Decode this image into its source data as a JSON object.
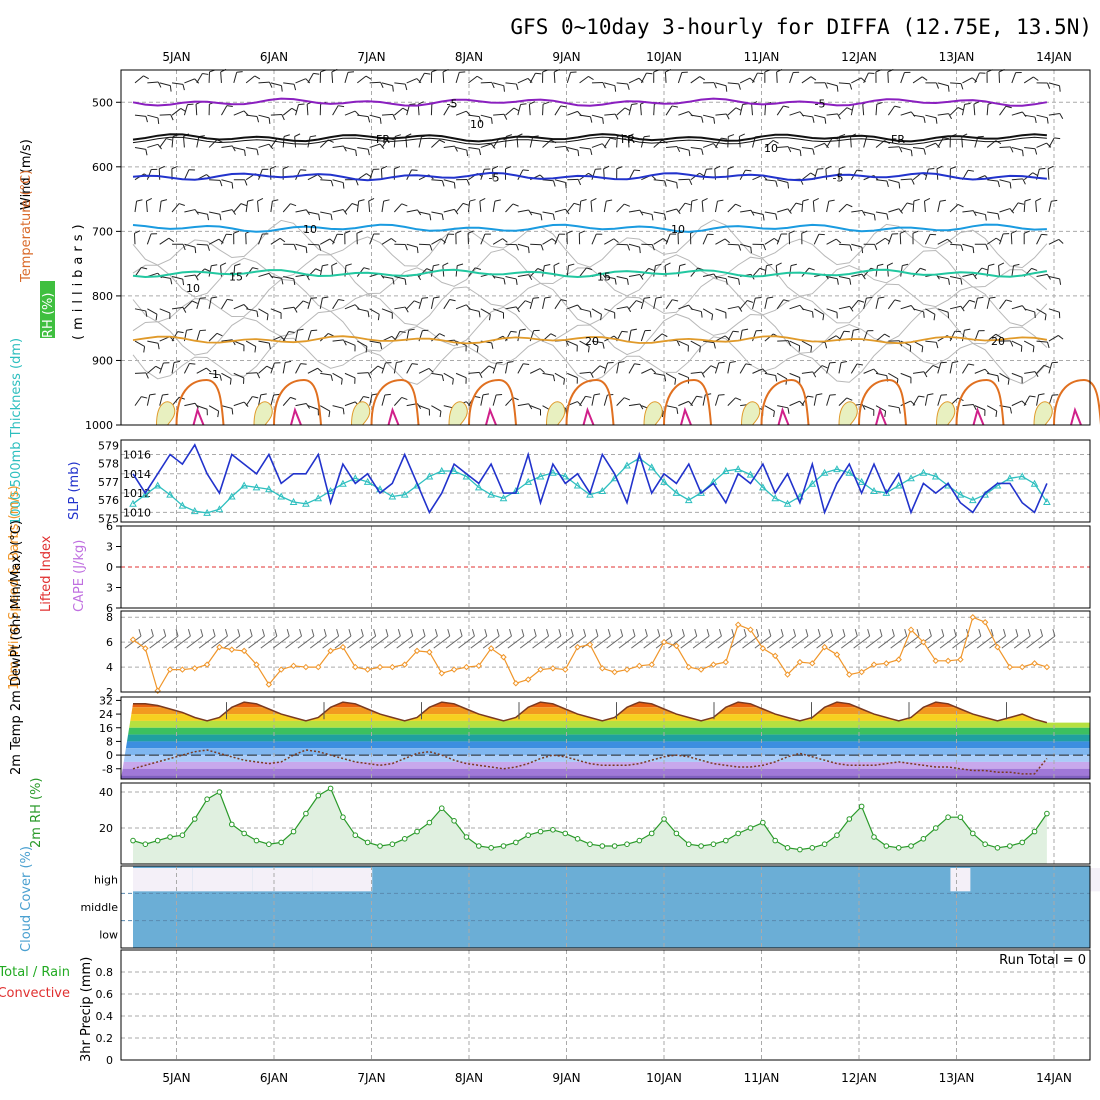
{
  "title": "GFS 0~10day 3-hourly for DIFFA (12.75E, 13.5N)",
  "dates": [
    "5JAN",
    "6JAN",
    "7JAN",
    "8JAN",
    "9JAN",
    "10JAN",
    "11JAN",
    "12JAN",
    "13JAN",
    "14JAN"
  ],
  "run_total_label": "Run Total = 0",
  "colors": {
    "purple": "#8a1fbf",
    "blue": "#2a4bd6",
    "lightblue": "#1a9be0",
    "teal": "#22c7a0",
    "orange": "#e09a2a",
    "darkorange": "#e07020",
    "magenta": "#d0208a",
    "cyan": "#2ebfbf",
    "slp": "#2233cc",
    "wind10": "#f0962a",
    "rh2m": "#2a9a2a",
    "cloud": "#6baed6",
    "red": "#e03030",
    "rhgreen": "#22aa22"
  },
  "chart_data": [
    {
      "panel": "upper-air",
      "type": "contour",
      "ylabel_parts": [
        "Wind (m/s)",
        "Temperature (°C)",
        "RH (%)"
      ],
      "ylabel_units": "(millibars)",
      "yticks": [
        500,
        600,
        700,
        800,
        900,
        1000
      ],
      "ylim": [
        450,
        1000
      ],
      "isotherm_labels": [
        {
          "value": "-5",
          "level": 500
        },
        {
          "value": "FR",
          "level": 555
        },
        {
          "value": "-5",
          "level": 615
        },
        {
          "value": "10",
          "level": 695
        },
        {
          "value": "15",
          "level": 768
        },
        {
          "value": "20",
          "level": 868
        }
      ],
      "rh_contour_labels": [
        "10",
        "10",
        "10",
        "1"
      ]
    },
    {
      "panel": "thickness-slp",
      "type": "line",
      "ylabel_left": "1000-500mb Thickness (dm)",
      "ylabel_right": "SLP (mb)",
      "yticks_left": [
        575,
        576,
        577,
        578,
        579
      ],
      "yticks_right": [
        1010,
        1012,
        1014,
        1016
      ],
      "series": [
        {
          "name": "SLP (mb)",
          "values": [
            1014,
            1012,
            1014,
            1016,
            1015,
            1017,
            1014,
            1012,
            1016,
            1015,
            1014,
            1016,
            1013,
            1014,
            1014,
            1016,
            1011,
            1015,
            1013,
            1014,
            1012,
            1013,
            1016,
            1013,
            1010,
            1012,
            1015,
            1014,
            1013,
            1015,
            1012,
            1012,
            1016,
            1011,
            1015,
            1013,
            1014,
            1012,
            1016,
            1014,
            1011,
            1016,
            1012,
            1014,
            1013,
            1015,
            1012,
            1013,
            1011,
            1014,
            1013,
            1015,
            1012,
            1014,
            1011,
            1015,
            1010,
            1013,
            1015,
            1012,
            1015,
            1012,
            1014,
            1010,
            1013,
            1012,
            1013,
            1011,
            1010,
            1012,
            1013,
            1013,
            1011,
            1010,
            1013
          ]
        },
        {
          "name": "1000-500mb Thickness (dm)",
          "values": [
            575.8,
            576.3,
            576.8,
            576.3,
            575.7,
            575.4,
            575.3,
            575.5,
            576.2,
            576.8,
            576.7,
            576.6,
            576.2,
            575.9,
            575.8,
            576.1,
            576.5,
            576.9,
            577.2,
            577.0,
            576.6,
            576.2,
            576.3,
            576.8,
            577.3,
            577.6,
            577.6,
            577.3,
            576.7,
            576.3,
            576.1,
            576.5,
            577.0,
            577.3,
            577.5,
            577.3,
            576.8,
            576.3,
            576.5,
            577.2,
            577.9,
            578.3,
            577.8,
            577.0,
            576.4,
            576.0,
            576.4,
            577.0,
            577.6,
            577.7,
            577.4,
            576.7,
            576.1,
            575.8,
            576.2,
            576.9,
            577.5,
            577.7,
            577.5,
            577.0,
            576.5,
            576.4,
            576.8,
            577.2,
            577.5,
            577.3,
            576.8,
            576.3,
            576.0,
            576.3,
            576.8,
            577.2,
            577.3,
            576.9,
            575.9
          ]
        }
      ]
    },
    {
      "panel": "stability",
      "type": "line",
      "ylabel_left": "Lifted Index",
      "ylabel_right": "CAPE (J/kg)",
      "yticks": [
        "6",
        "3",
        "0",
        "3",
        "6"
      ],
      "ylim": [
        -6,
        6
      ],
      "zero_line": 0
    },
    {
      "panel": "wind10m",
      "type": "line",
      "ylabel": "10m Wind Speed & Barbs (m/s)",
      "yticks": [
        2,
        4,
        6,
        8
      ],
      "ylim": [
        2,
        8.5
      ],
      "series": [
        {
          "name": "10m Wind Speed",
          "values": [
            6.2,
            5.5,
            2.1,
            3.8,
            3.8,
            3.9,
            4.2,
            5.6,
            5.4,
            5.3,
            4.2,
            2.6,
            3.8,
            4.1,
            4.0,
            4.0,
            5.3,
            5.6,
            4.0,
            3.8,
            4.0,
            4.0,
            4.2,
            5.3,
            5.2,
            3.5,
            3.8,
            4.0,
            4.1,
            5.5,
            4.8,
            2.7,
            3.0,
            3.8,
            3.9,
            3.8,
            5.6,
            5.8,
            3.9,
            3.6,
            3.8,
            4.1,
            4.2,
            6.0,
            5.7,
            4.0,
            3.8,
            4.2,
            4.4,
            7.4,
            7.0,
            5.5,
            4.9,
            3.4,
            4.4,
            4.3,
            5.6,
            5.0,
            3.4,
            3.6,
            4.2,
            4.3,
            4.6,
            7.0,
            6.0,
            4.5,
            4.5,
            4.6,
            8.0,
            7.6,
            5.6,
            4.0,
            4.0,
            4.3,
            4.0
          ]
        }
      ]
    },
    {
      "panel": "temp2m",
      "type": "area",
      "ylabel": "2m Temp 2m DewPt (6hr Min/Max) (°C)",
      "yticks": [
        -8,
        0,
        8,
        16,
        24,
        32
      ],
      "ylim": [
        -14,
        34
      ],
      "series": [
        {
          "name": "2m Temp",
          "values": [
            30,
            30,
            29,
            27,
            25,
            22,
            20,
            22,
            28,
            31,
            30,
            27,
            24,
            22,
            20,
            22,
            28,
            31,
            30,
            27,
            24,
            22,
            20,
            22,
            28,
            31,
            30,
            27,
            24,
            22,
            20,
            22,
            28,
            31,
            30,
            27,
            24,
            22,
            20,
            22,
            28,
            31,
            30,
            27,
            24,
            22,
            20,
            22,
            28,
            31,
            30,
            27,
            24,
            22,
            20,
            22,
            28,
            31,
            30,
            27,
            24,
            22,
            20,
            22,
            28,
            31,
            30,
            27,
            24,
            22,
            20,
            22,
            24,
            21,
            19
          ]
        },
        {
          "name": "2m DewPt",
          "values": [
            -8,
            -6,
            -4,
            -2,
            0,
            2,
            3,
            1,
            -1,
            -3,
            -4,
            -5,
            -4,
            0,
            3,
            2,
            0,
            -2,
            -4,
            -5,
            -6,
            -5,
            -2,
            1,
            2,
            0,
            -3,
            -5,
            -6,
            -7,
            -8,
            -7,
            -5,
            -2,
            0,
            -1,
            -3,
            -5,
            -6,
            -6,
            -6,
            -5,
            -3,
            -1,
            0,
            -1,
            -3,
            -5,
            -6,
            -7,
            -7,
            -6,
            -4,
            -1,
            1,
            -1,
            -3,
            -5,
            -6,
            -6,
            -6,
            -5,
            -4,
            -5,
            -6,
            -7,
            -7,
            -8,
            -9,
            -9,
            -10,
            -10,
            -11,
            -11,
            -2
          ]
        }
      ]
    },
    {
      "panel": "rh2m",
      "type": "area",
      "ylabel": "2m RH (%)",
      "yticks": [
        20,
        40
      ],
      "ylim": [
        0,
        45
      ],
      "series": [
        {
          "name": "2m RH",
          "values": [
            13,
            11,
            13,
            15,
            16,
            25,
            36,
            40,
            22,
            17,
            13,
            11,
            12,
            18,
            28,
            38,
            42,
            26,
            16,
            12,
            10,
            11,
            14,
            18,
            23,
            31,
            24,
            15,
            10,
            9,
            10,
            12,
            16,
            18,
            19,
            17,
            14,
            11,
            10,
            10,
            11,
            13,
            17,
            25,
            17,
            11,
            10,
            11,
            13,
            17,
            20,
            23,
            13,
            9,
            8,
            9,
            11,
            16,
            25,
            32,
            15,
            10,
            9,
            10,
            14,
            20,
            26,
            26,
            17,
            11,
            9,
            10,
            12,
            18,
            28
          ]
        }
      ]
    },
    {
      "panel": "cloud",
      "type": "heatmap",
      "ylabel": "Cloud Cover (%)",
      "rows": [
        "high",
        "middle",
        "low"
      ],
      "high_gaps": [
        [
          0,
          0.6
        ],
        [
          0.6,
          1.2
        ],
        [
          1.2,
          1.8
        ],
        [
          1.8,
          2.4
        ],
        [
          8.2,
          8.4
        ],
        [
          9.6,
          10.2
        ],
        [
          10.3,
          10.9
        ],
        [
          11.0,
          11.6
        ],
        [
          11.7,
          12.3
        ],
        [
          16.0,
          16.2
        ],
        [
          18.8,
          19.0
        ],
        [
          20.4,
          21.0
        ],
        [
          21.2,
          21.8
        ],
        [
          22.1,
          22.4
        ]
      ]
    },
    {
      "panel": "precip",
      "type": "bar",
      "ylabel_legend": [
        "Total / Rain",
        "Convective"
      ],
      "ylabel": "3hr Precip (mm)",
      "yticks": [
        0,
        0.2,
        0.4,
        0.6,
        0.8
      ],
      "ylim": [
        0,
        1.0
      ],
      "series": [
        {
          "name": "3hr Precip",
          "values": [
            0,
            0,
            0,
            0,
            0,
            0,
            0,
            0,
            0,
            0
          ]
        }
      ]
    }
  ]
}
